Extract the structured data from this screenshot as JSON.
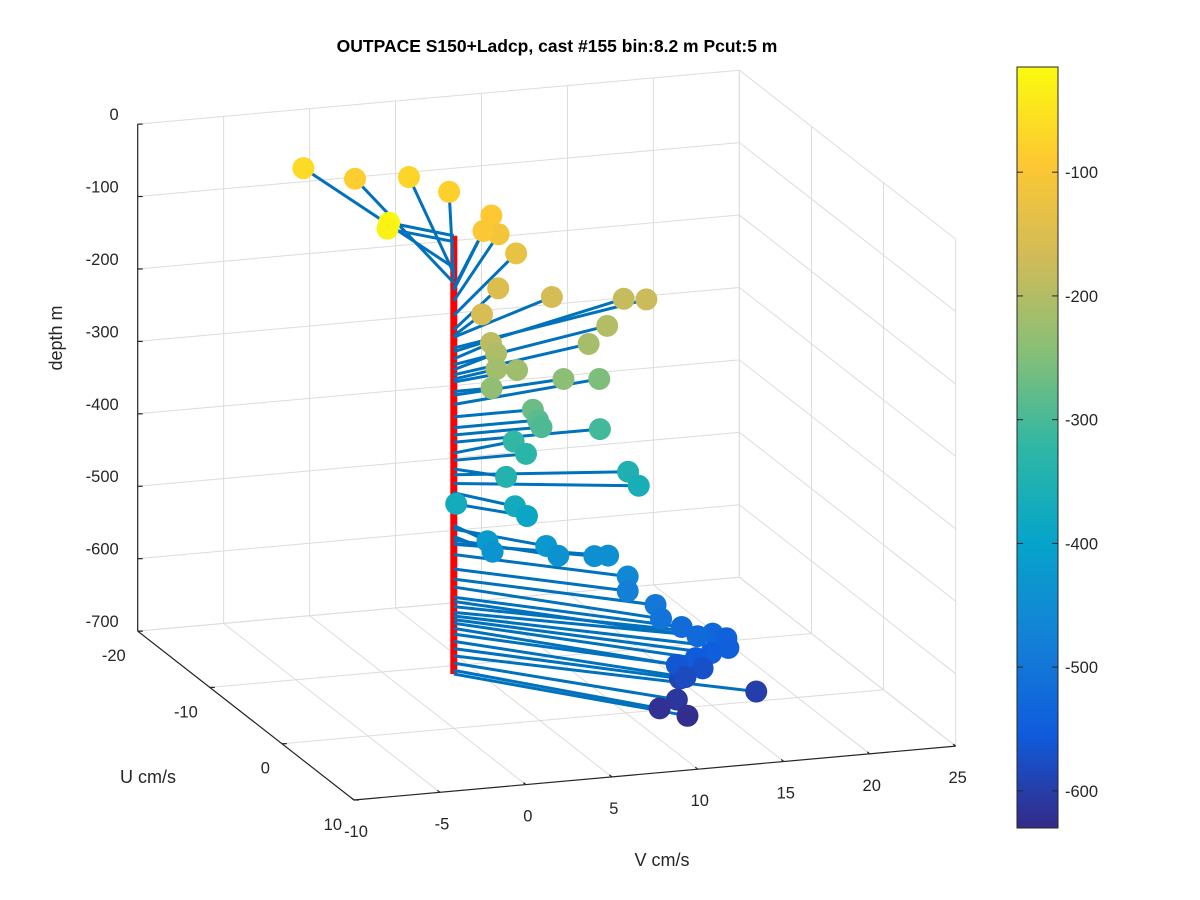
{
  "chart_data": {
    "type": "scatter",
    "title": "OUTPACE S150+Ladcp, cast #155 bin:8.2 m  Pcut:5 m",
    "xlabel": "V cm/s",
    "ylabel": "U cm/s",
    "zlabel": "depth m",
    "xlim": [
      -10,
      25
    ],
    "ylim": [
      -20,
      10
    ],
    "zlim": [
      -700,
      0
    ],
    "x_ticks": [
      "-10",
      "-5",
      "0",
      "5",
      "10",
      "15",
      "20",
      "25"
    ],
    "y_ticks": [
      "-20",
      "-10",
      "0",
      "10"
    ],
    "z_ticks": [
      "0",
      "-100",
      "-200",
      "-300",
      "-400",
      "-500",
      "-600",
      "-700"
    ],
    "colorbar": {
      "range": [
        -630,
        -15
      ],
      "ticks": [
        "-100",
        "-200",
        "-300",
        "-400",
        "-500",
        "-600"
      ],
      "colormap": "parula"
    },
    "grid": true,
    "profile_color": "#ff0000",
    "vector_color": "#0072bd",
    "points": [
      {
        "depth": -20,
        "v": -2.5,
        "u": -3
      },
      {
        "depth": -28,
        "v": -2.6,
        "u": -3
      },
      {
        "depth": -64,
        "v": -1.2,
        "u": -18
      },
      {
        "depth": -85,
        "v": 1.8,
        "u": -18
      },
      {
        "depth": -72,
        "v": 4.1,
        "u": -16
      },
      {
        "depth": -80,
        "v": 5.6,
        "u": -14
      },
      {
        "depth": -92,
        "v": 6.8,
        "u": -11
      },
      {
        "depth": -110,
        "v": 6.8,
        "u": -10
      },
      {
        "depth": -95,
        "v": 5.5,
        "u": -9
      },
      {
        "depth": -130,
        "v": 7.4,
        "u": -9
      },
      {
        "depth": -150,
        "v": 5.1,
        "u": -6
      },
      {
        "depth": -160,
        "v": 7.8,
        "u": -5
      },
      {
        "depth": -175,
        "v": 13.3,
        "u": -5
      },
      {
        "depth": -180,
        "v": 12.4,
        "u": -6
      },
      {
        "depth": -190,
        "v": 3.0,
        "u": -2
      },
      {
        "depth": -158,
        "v": 2.9,
        "u": -3
      },
      {
        "depth": -198,
        "v": 10.6,
        "u": -4
      },
      {
        "depth": -212,
        "v": 9.1,
        "u": -3
      },
      {
        "depth": -205,
        "v": 3.3,
        "u": -2
      },
      {
        "depth": -218,
        "v": 2.9,
        "u": -1
      },
      {
        "depth": -222,
        "v": 4.1,
        "u": -1
      },
      {
        "depth": -235,
        "v": 2.2,
        "u": 0
      },
      {
        "depth": -240,
        "v": 6.8,
        "u": -1
      },
      {
        "depth": -253,
        "v": 9.3,
        "u": -2
      },
      {
        "depth": -270,
        "v": 4.6,
        "u": 0
      },
      {
        "depth": -285,
        "v": 4.9,
        "u": 0
      },
      {
        "depth": -295,
        "v": 5.1,
        "u": 0
      },
      {
        "depth": -305,
        "v": 8.5,
        "u": 0
      },
      {
        "depth": -320,
        "v": 3.9,
        "u": -1
      },
      {
        "depth": -330,
        "v": 4.2,
        "u": 0
      },
      {
        "depth": -342,
        "v": 2.2,
        "u": 2
      },
      {
        "depth": -350,
        "v": 9.3,
        "u": 2
      },
      {
        "depth": -362,
        "v": 9.5,
        "u": 3
      },
      {
        "depth": -373,
        "v": -0.7,
        "u": 2
      },
      {
        "depth": -375,
        "v": 2.3,
        "u": 3
      },
      {
        "depth": -390,
        "v": 3.0,
        "u": 3
      },
      {
        "depth": -420,
        "v": 0.7,
        "u": 3
      },
      {
        "depth": -435,
        "v": 1.0,
        "u": 3
      },
      {
        "depth": -425,
        "v": 3.7,
        "u": 4
      },
      {
        "depth": -440,
        "v": 4.4,
        "u": 4
      },
      {
        "depth": -445,
        "v": 6.5,
        "u": 4
      },
      {
        "depth": -446,
        "v": 7.3,
        "u": 4
      },
      {
        "depth": -460,
        "v": 7.6,
        "u": 6
      },
      {
        "depth": -480,
        "v": 7.6,
        "u": 6
      },
      {
        "depth": -494,
        "v": 8.8,
        "u": 7
      },
      {
        "depth": -505,
        "v": 8.7,
        "u": 8
      },
      {
        "depth": -519,
        "v": 9.9,
        "u": 8
      },
      {
        "depth": -525,
        "v": 10.4,
        "u": 9
      },
      {
        "depth": -532,
        "v": 11.7,
        "u": 8
      },
      {
        "depth": -540,
        "v": 12.5,
        "u": 8
      },
      {
        "depth": -545,
        "v": 12.2,
        "u": 9
      },
      {
        "depth": -550,
        "v": 11.2,
        "u": 9
      },
      {
        "depth": -555,
        "v": 10.3,
        "u": 9
      },
      {
        "depth": -562,
        "v": 9.2,
        "u": 9
      },
      {
        "depth": -570,
        "v": 10.7,
        "u": 9
      },
      {
        "depth": -580,
        "v": 9.7,
        "u": 9
      },
      {
        "depth": -590,
        "v": 9.8,
        "u": 8
      },
      {
        "depth": -600,
        "v": 13.4,
        "u": 10
      },
      {
        "depth": -610,
        "v": 9.2,
        "u": 9
      },
      {
        "depth": -620,
        "v": 8.2,
        "u": 9
      },
      {
        "depth": -625,
        "v": 9.4,
        "u": 10
      }
    ]
  }
}
